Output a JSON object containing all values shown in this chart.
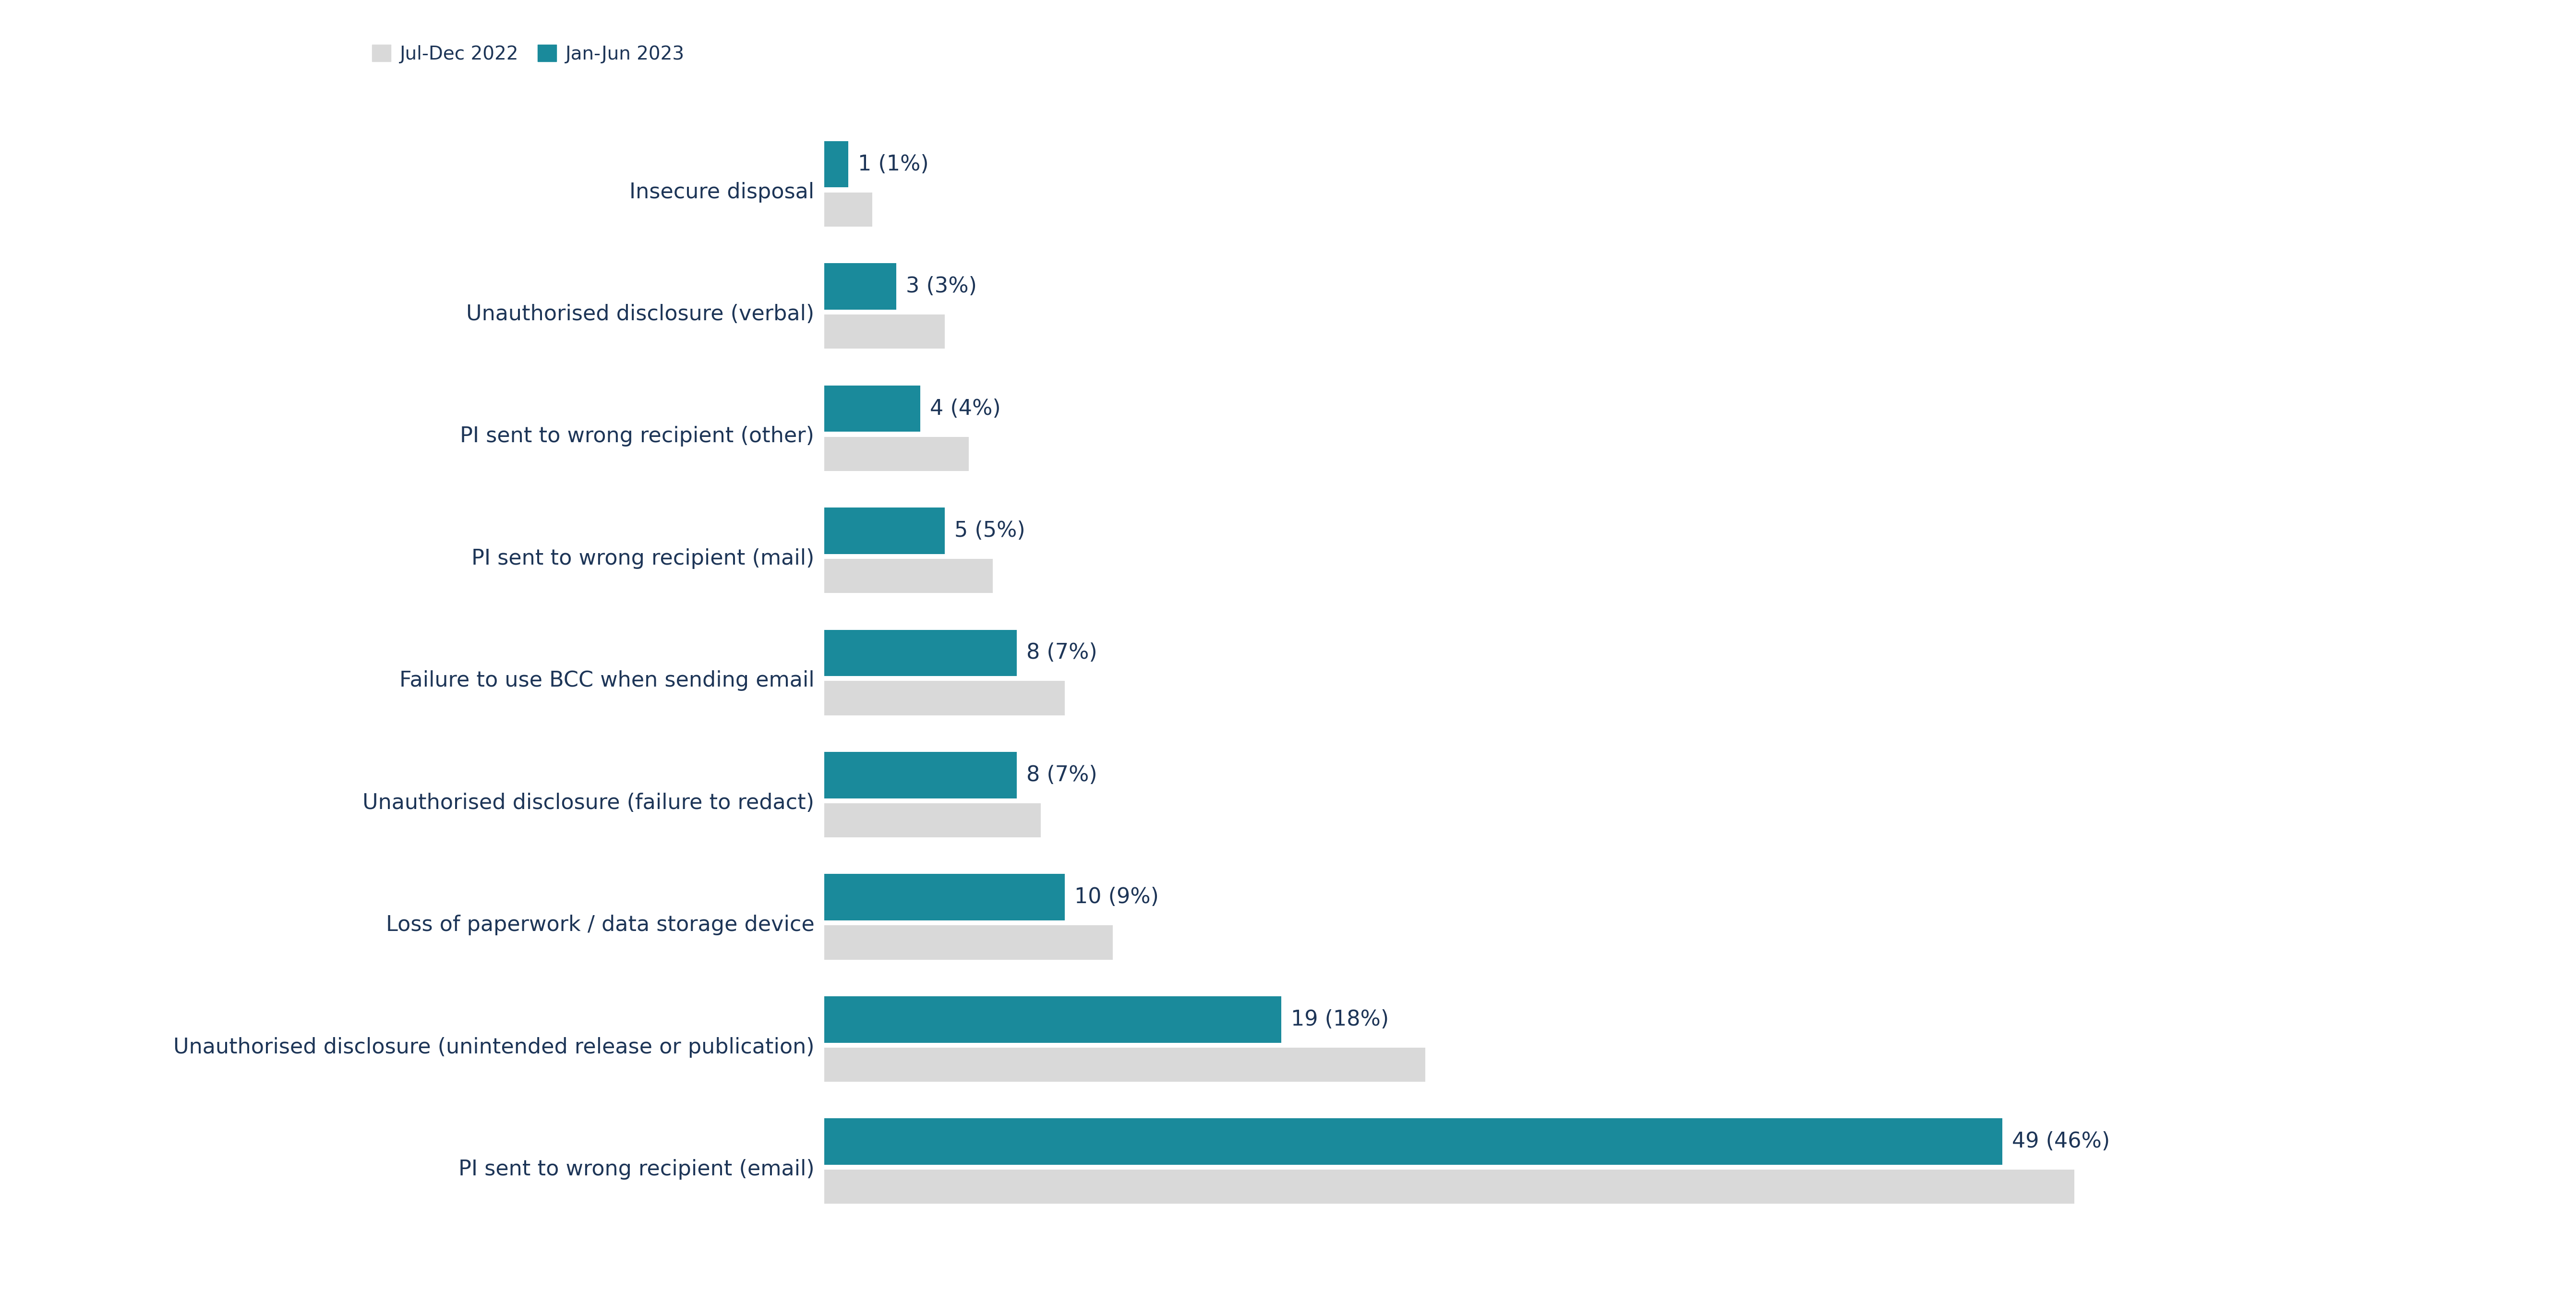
{
  "categories": [
    "PI sent to wrong recipient (email)",
    "Unauthorised disclosure (unintended release or publication)",
    "Loss of paperwork / data storage device",
    "Unauthorised disclosure (failure to redact)",
    "Failure to use BCC when sending email",
    "PI sent to wrong recipient (mail)",
    "PI sent to wrong recipient (other)",
    "Unauthorised disclosure (verbal)",
    "Insecure disposal"
  ],
  "values_2023": [
    49,
    19,
    10,
    8,
    8,
    5,
    4,
    3,
    1
  ],
  "values_2022": [
    52,
    25,
    12,
    9,
    10,
    7,
    6,
    5,
    2
  ],
  "labels_2023": [
    "49 (46%)",
    "19 (18%)",
    "10 (9%)",
    "8 (7%)",
    "8 (7%)",
    "5 (5%)",
    "4 (4%)",
    "3 (3%)",
    "1 (1%)"
  ],
  "color_2023": "#1a8a9b",
  "color_2022": "#d9d9d9",
  "text_color": "#1d3557",
  "background_color": "#ffffff",
  "legend_labels": [
    "Jul-Dec 2022",
    "Jan-Jun 2023"
  ],
  "tick_fontsize": 32,
  "legend_fontsize": 28,
  "annotation_fontsize": 32
}
